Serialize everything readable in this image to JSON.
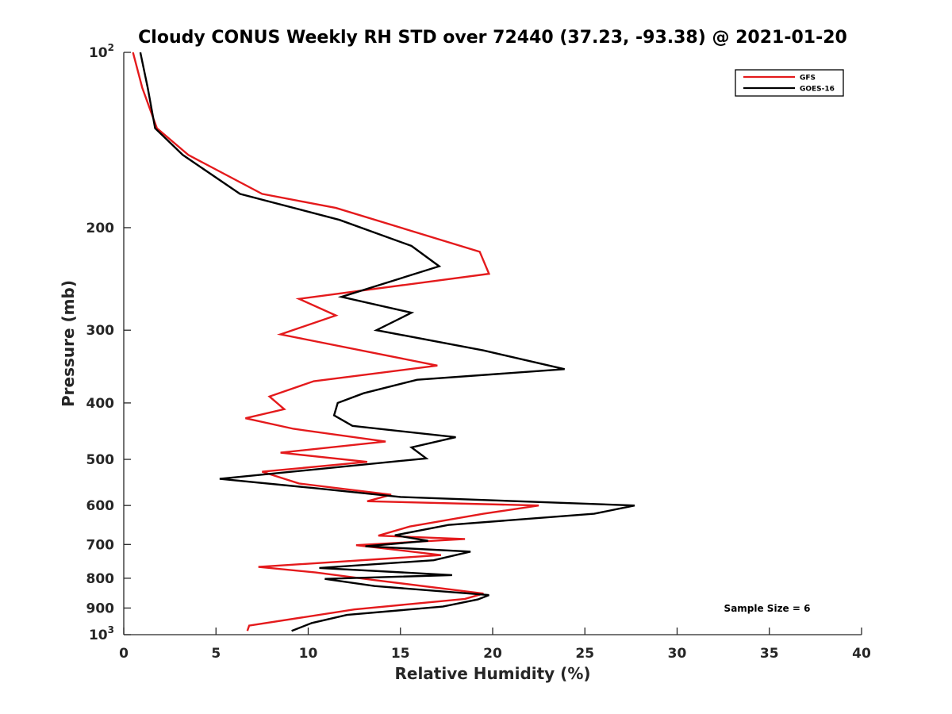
{
  "chart_data": {
    "type": "line",
    "title": "Cloudy CONUS Weekly RH STD over 72440 (37.23, -93.38) @ 2021-01-20",
    "xlabel": "Relative Humidity (%)",
    "ylabel": "Pressure (mb)",
    "xlim": [
      0,
      40
    ],
    "ylim": [
      100,
      1000
    ],
    "y_scale": "log",
    "y_reversed": true,
    "grid": false,
    "legend_placement": "top-right",
    "x_ticks": [
      0,
      5,
      10,
      15,
      20,
      25,
      30,
      35,
      40
    ],
    "y_ticks": [
      100,
      200,
      300,
      400,
      500,
      600,
      700,
      800,
      900,
      1000
    ],
    "y_tick_labels": {
      "100": {
        "base": "10",
        "exp": "2"
      },
      "1000": {
        "base": "10",
        "exp": "3"
      }
    },
    "annotation": "Sample Size = 6",
    "series": [
      {
        "name": "GFS",
        "color": "#e41a1c",
        "x": [
          0.5,
          1.0,
          1.8,
          3.5,
          7.5,
          11.5,
          19.3,
          19.8,
          9.5,
          11.5,
          8.5,
          17.0,
          10.3,
          7.9,
          8.7,
          6.6,
          9.2,
          14.2,
          8.5,
          13.2,
          7.5,
          9.5,
          14.5,
          13.2,
          22.5,
          19.5,
          15.5,
          13.8,
          18.5,
          12.6,
          17.2,
          7.3,
          10.4,
          13.5,
          19.5,
          18.5,
          12.5,
          6.8,
          6.7
        ],
        "y": [
          100,
          115,
          135,
          150,
          175,
          185,
          220,
          240,
          265,
          283,
          305,
          345,
          367,
          390,
          410,
          425,
          443,
          466,
          487,
          505,
          525,
          550,
          575,
          590,
          600,
          620,
          652,
          676,
          685,
          702,
          730,
          765,
          782,
          805,
          850,
          868,
          905,
          965,
          985
        ]
      },
      {
        "name": "GOES-16",
        "color": "#000000",
        "x": [
          0.9,
          1.3,
          1.7,
          3.2,
          6.3,
          11.7,
          15.6,
          17.1,
          11.8,
          15.6,
          13.7,
          19.5,
          23.9,
          15.9,
          13.0,
          11.6,
          11.4,
          12.4,
          18.0,
          15.6,
          16.4,
          5.2,
          10.3,
          15.0,
          27.7,
          25.5,
          17.6,
          14.7,
          16.5,
          13.1,
          18.8,
          16.8,
          10.6,
          17.8,
          10.9,
          13.6,
          19.8,
          19.2,
          17.3,
          12.1,
          10.2,
          9.1
        ],
        "y": [
          100,
          115,
          135,
          150,
          175,
          194,
          215,
          233,
          263,
          280,
          300,
          325,
          350,
          365,
          385,
          400,
          420,
          438,
          458,
          477,
          498,
          540,
          560,
          580,
          600,
          620,
          648,
          675,
          690,
          705,
          720,
          745,
          768,
          790,
          802,
          825,
          855,
          870,
          895,
          925,
          955,
          985
        ]
      }
    ]
  }
}
